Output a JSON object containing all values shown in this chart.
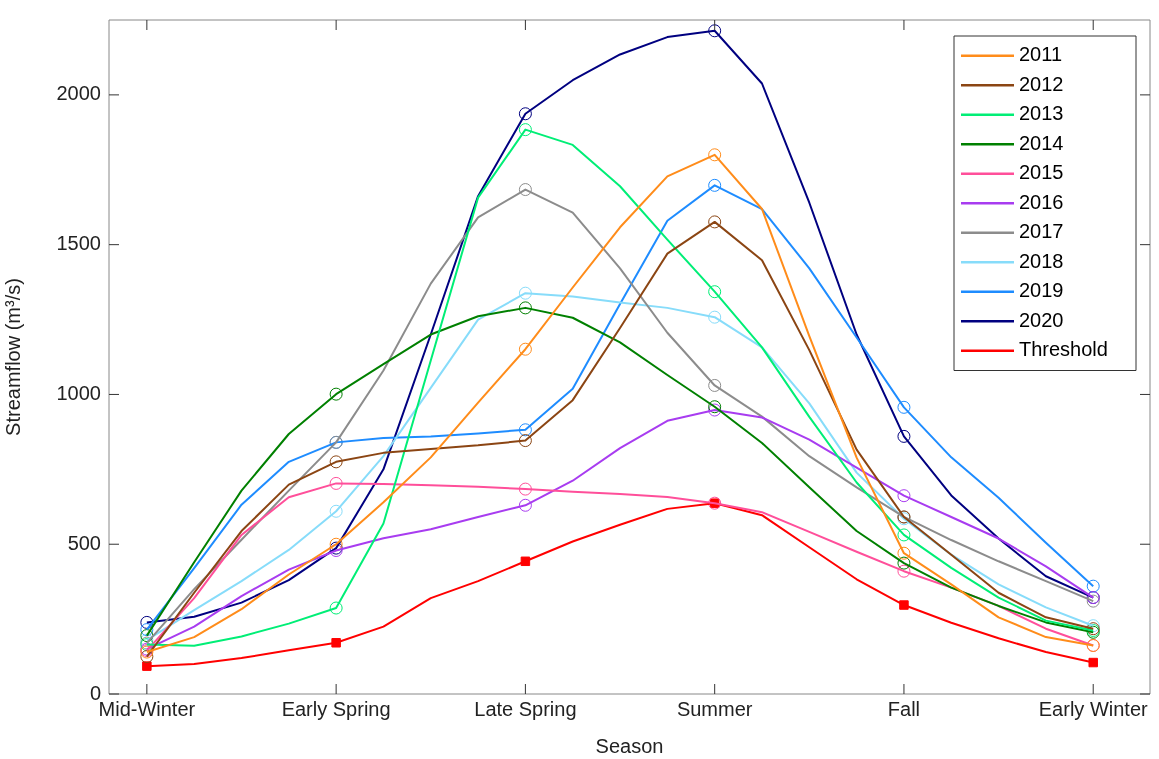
{
  "chart_data": {
    "type": "line",
    "xlabel": "Season",
    "ylabel": "Streamflow (m³/s)",
    "categories": [
      "Mid-Winter",
      null,
      null,
      null,
      "Early Spring",
      null,
      null,
      null,
      "Late Spring",
      null,
      null,
      null,
      "Summer",
      null,
      null,
      null,
      "Fall",
      null,
      null,
      null,
      "Early Winter"
    ],
    "ylim": [
      0,
      2250
    ],
    "yticks": [
      0,
      500,
      1000,
      1500,
      2000
    ],
    "grid": false,
    "legend": "top right",
    "line_style": "solid",
    "series": [
      {
        "name": "2011",
        "color": "#ff8c1a",
        "values": [
          140,
          190,
          283,
          399,
          500,
          640,
          790,
          973,
          1151,
          1357,
          1558,
          1728,
          1800,
          1619,
          1195,
          789,
          470,
          366,
          256,
          190,
          162
        ]
      },
      {
        "name": "2012",
        "color": "#8b4513",
        "values": [
          125,
          338,
          544,
          699,
          775,
          805,
          818,
          830,
          846,
          981,
          1222,
          1470,
          1576,
          1448,
          1148,
          816,
          591,
          465,
          338,
          256,
          218
        ]
      },
      {
        "name": "2013",
        "color": "#00ee76",
        "values": [
          165,
          161,
          192,
          235,
          287,
          569,
          1113,
          1657,
          1884,
          1833,
          1695,
          1517,
          1343,
          1157,
          925,
          706,
          531,
          421,
          322,
          245,
          212
        ]
      },
      {
        "name": "2014",
        "color": "#008000",
        "values": [
          195,
          440,
          679,
          868,
          1001,
          1101,
          1200,
          1261,
          1289,
          1256,
          1174,
          1065,
          959,
          838,
          690,
          544,
          437,
          355,
          294,
          239,
          206
        ]
      },
      {
        "name": "2015",
        "color": "#ff4f9a",
        "values": [
          145,
          320,
          531,
          657,
          703,
          701,
          697,
          692,
          684,
          675,
          668,
          658,
          637,
          607,
          541,
          475,
          410,
          355,
          294,
          218,
          162
        ]
      },
      {
        "name": "2016",
        "color": "#a83cf0",
        "values": [
          150,
          225,
          327,
          415,
          479,
          520,
          550,
          591,
          630,
          712,
          821,
          912,
          948,
          923,
          849,
          756,
          662,
          591,
          519,
          426,
          322
        ]
      },
      {
        "name": "2017",
        "color": "#8c8c8c",
        "values": [
          170,
          350,
          515,
          679,
          840,
          1080,
          1370,
          1591,
          1684,
          1607,
          1421,
          1206,
          1030,
          926,
          794,
          690,
          591,
          514,
          443,
          377,
          310
        ]
      },
      {
        "name": "2018",
        "color": "#87dcfa",
        "values": [
          180,
          280,
          377,
          481,
          610,
          794,
          1022,
          1250,
          1338,
          1327,
          1307,
          1289,
          1258,
          1157,
          970,
          739,
          585,
          465,
          366,
          289,
          228
        ]
      },
      {
        "name": "2019",
        "color": "#1e8cff",
        "values": [
          215,
          420,
          632,
          775,
          840,
          855,
          860,
          870,
          882,
          1019,
          1302,
          1580,
          1698,
          1619,
          1421,
          1190,
          957,
          790,
          655,
          505,
          360
        ]
      },
      {
        "name": "2020",
        "color": "#000080",
        "values": [
          239,
          258,
          305,
          380,
          487,
          750,
          1200,
          1662,
          1937,
          2049,
          2135,
          2193,
          2214,
          2038,
          1640,
          1200,
          860,
          663,
          519,
          393,
          322
        ]
      },
      {
        "name": "Threshold",
        "color": "#ff0000",
        "values": [
          93,
          100,
          120,
          146,
          171,
          225,
          320,
          377,
          443,
          509,
          565,
          618,
          637,
          597,
          490,
          383,
          297,
          238,
          186,
          140,
          105
        ]
      },
      {
        "type": "scatter",
        "color": "#ff8c1a",
        "marker": "circle",
        "values": [
          140,
          null,
          null,
          null,
          500,
          null,
          null,
          null,
          1151,
          null,
          null,
          null,
          1800,
          null,
          null,
          null,
          470,
          null,
          null,
          null,
          162
        ]
      },
      {
        "type": "scatter",
        "color": "#8b4513",
        "marker": "circle",
        "values": [
          125,
          null,
          null,
          null,
          775,
          null,
          null,
          null,
          846,
          null,
          null,
          null,
          1576,
          null,
          null,
          null,
          591,
          null,
          null,
          null,
          218
        ]
      },
      {
        "type": "scatter",
        "color": "#00ee76",
        "marker": "circle",
        "values": [
          165,
          null,
          null,
          null,
          287,
          null,
          null,
          null,
          1884,
          null,
          null,
          null,
          1343,
          null,
          null,
          null,
          531,
          null,
          null,
          null,
          212
        ]
      },
      {
        "type": "scatter",
        "color": "#008000",
        "marker": "circle",
        "values": [
          195,
          null,
          null,
          null,
          1001,
          null,
          null,
          null,
          1289,
          null,
          null,
          null,
          959,
          null,
          null,
          null,
          437,
          null,
          null,
          null,
          206
        ]
      },
      {
        "type": "scatter",
        "color": "#ff4f9a",
        "marker": "circle",
        "values": [
          145,
          null,
          null,
          null,
          703,
          null,
          null,
          null,
          684,
          null,
          null,
          null,
          637,
          null,
          null,
          null,
          410,
          null,
          null,
          null,
          162
        ]
      },
      {
        "type": "scatter",
        "color": "#a83cf0",
        "marker": "circle",
        "values": [
          150,
          null,
          null,
          null,
          479,
          null,
          null,
          null,
          630,
          null,
          null,
          null,
          948,
          null,
          null,
          null,
          662,
          null,
          null,
          null,
          322
        ]
      },
      {
        "type": "scatter",
        "color": "#8c8c8c",
        "marker": "circle",
        "values": [
          170,
          null,
          null,
          null,
          840,
          null,
          null,
          null,
          1684,
          null,
          null,
          null,
          1030,
          null,
          null,
          null,
          591,
          null,
          null,
          null,
          310
        ]
      },
      {
        "type": "scatter",
        "color": "#87dcfa",
        "marker": "circle",
        "values": [
          180,
          null,
          null,
          null,
          610,
          null,
          null,
          null,
          1338,
          null,
          null,
          null,
          1258,
          null,
          null,
          null,
          585,
          null,
          null,
          null,
          228
        ]
      },
      {
        "type": "scatter",
        "color": "#1e8cff",
        "marker": "circle",
        "values": [
          215,
          null,
          null,
          null,
          840,
          null,
          null,
          null,
          882,
          null,
          null,
          null,
          1698,
          null,
          null,
          null,
          957,
          null,
          null,
          null,
          360
        ]
      },
      {
        "type": "scatter",
        "color": "#000080",
        "marker": "circle",
        "values": [
          239,
          null,
          null,
          null,
          487,
          null,
          null,
          null,
          1937,
          null,
          null,
          null,
          2214,
          null,
          null,
          null,
          860,
          null,
          null,
          null,
          322
        ]
      },
      {
        "type": "scatter",
        "color": "#ff0000",
        "marker": "square",
        "values": [
          93,
          null,
          null,
          null,
          171,
          null,
          null,
          null,
          443,
          null,
          null,
          null,
          637,
          null,
          null,
          null,
          297,
          null,
          null,
          null,
          105
        ]
      }
    ]
  }
}
